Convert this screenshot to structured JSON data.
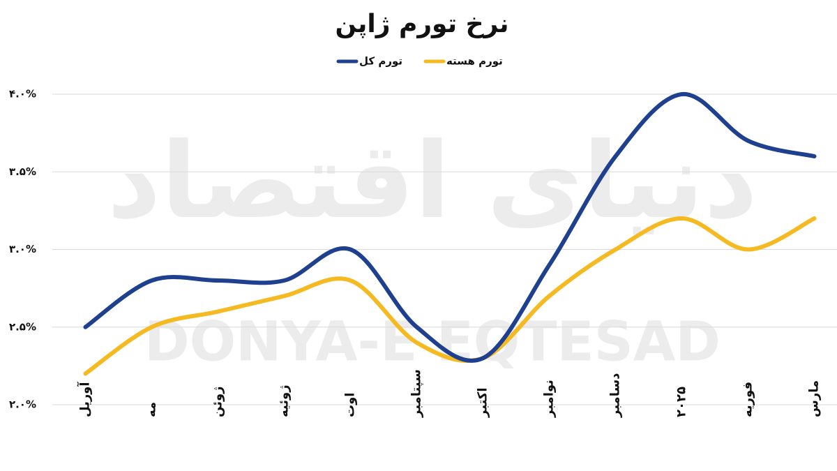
{
  "chart_data": {
    "type": "line",
    "title": "نرخ تورم ژاپن",
    "watermark": [
      "دنیای اقتصاد",
      "DONYA-E EQTESAD"
    ],
    "categories": [
      "آوریل",
      "مه",
      "ژوئن",
      "ژوئیه",
      "اوت",
      "سپتامبر",
      "اکتبر",
      "نوامبر",
      "دسامبر",
      "۲۰۲۵",
      "فوریه",
      "مارس"
    ],
    "series": [
      {
        "name": "تورم کل",
        "color": "#1f3f8f",
        "values": [
          2.5,
          2.8,
          2.8,
          2.8,
          3.0,
          2.5,
          2.3,
          2.9,
          3.6,
          4.0,
          3.7,
          3.6
        ]
      },
      {
        "name": "تورم هسته",
        "color": "#f5b921",
        "values": [
          2.2,
          2.5,
          2.6,
          2.7,
          2.8,
          2.4,
          2.3,
          2.7,
          3.0,
          3.2,
          3.0,
          3.2
        ]
      }
    ],
    "ylim": [
      2.0,
      4.0
    ],
    "yticks": [
      {
        "value": 2.0,
        "label": "۲.۰%"
      },
      {
        "value": 2.5,
        "label": "۲.۵%"
      },
      {
        "value": 3.0,
        "label": "۳.۰%"
      },
      {
        "value": 3.5,
        "label": "۳.۵%"
      },
      {
        "value": 4.0,
        "label": "۴.۰%"
      }
    ],
    "grid": true,
    "legend": "top"
  }
}
